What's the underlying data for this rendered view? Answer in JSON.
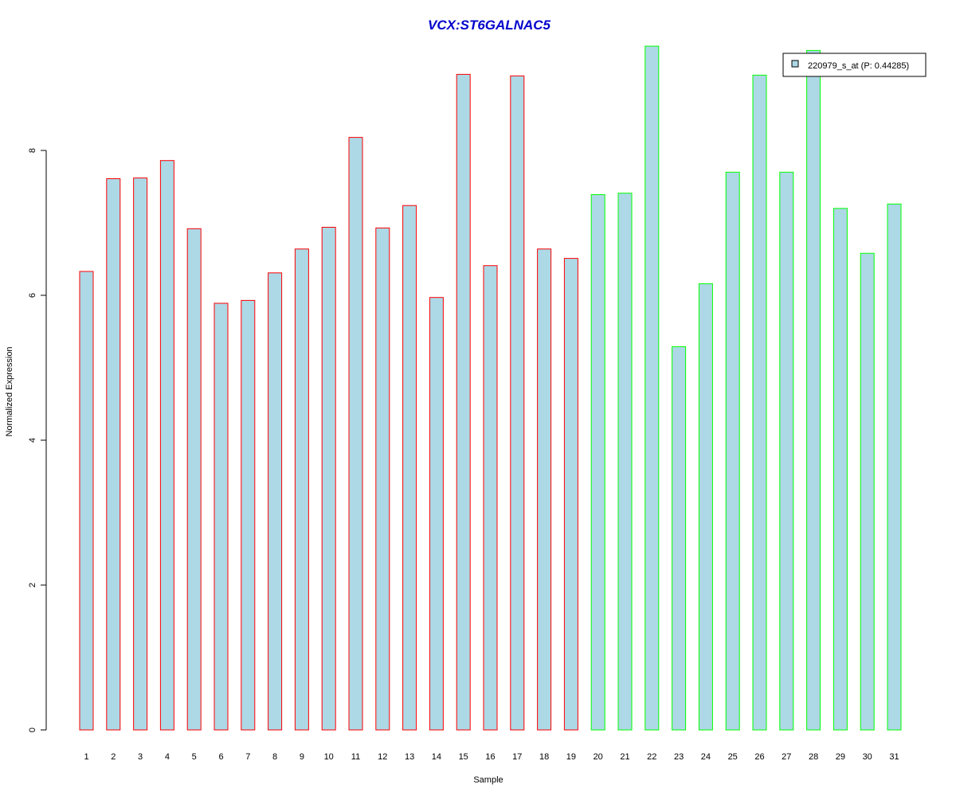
{
  "chart_data": {
    "type": "bar",
    "title": "VCX:ST6GALNAC5",
    "xlabel": "Sample",
    "ylabel": "Normalized Expression",
    "ylim": [
      0,
      9.6
    ],
    "yticks": [
      0,
      2,
      4,
      6,
      8
    ],
    "categories": [
      "1",
      "2",
      "3",
      "4",
      "5",
      "6",
      "7",
      "8",
      "9",
      "10",
      "11",
      "12",
      "13",
      "14",
      "15",
      "16",
      "17",
      "18",
      "19",
      "20",
      "21",
      "22",
      "23",
      "24",
      "25",
      "26",
      "27",
      "28",
      "29",
      "30",
      "31"
    ],
    "series": [
      {
        "name": "220979_s_at (P: 0.44285)",
        "values": [
          6.33,
          7.61,
          7.62,
          7.86,
          6.92,
          5.89,
          5.93,
          6.31,
          6.64,
          6.94,
          8.18,
          6.93,
          7.24,
          5.97,
          9.05,
          6.41,
          9.03,
          6.64,
          6.51,
          7.39,
          7.41,
          9.44,
          5.29,
          6.16,
          7.7,
          9.04,
          7.7,
          9.38,
          7.2,
          6.58,
          7.26
        ]
      }
    ],
    "fill_color": "#ADD8E6",
    "group_colors": [
      "#FF0000",
      "#FF0000",
      "#FF0000",
      "#FF0000",
      "#FF0000",
      "#FF0000",
      "#FF0000",
      "#FF0000",
      "#FF0000",
      "#FF0000",
      "#FF0000",
      "#FF0000",
      "#FF0000",
      "#FF0000",
      "#FF0000",
      "#FF0000",
      "#FF0000",
      "#FF0000",
      "#FF0000",
      "#00FF00",
      "#00FF00",
      "#00FF00",
      "#00FF00",
      "#00FF00",
      "#00FF00",
      "#00FF00",
      "#00FF00",
      "#00FF00",
      "#00FF00",
      "#00FF00",
      "#00FF00"
    ],
    "legend_position": "top-right",
    "grid": false
  }
}
